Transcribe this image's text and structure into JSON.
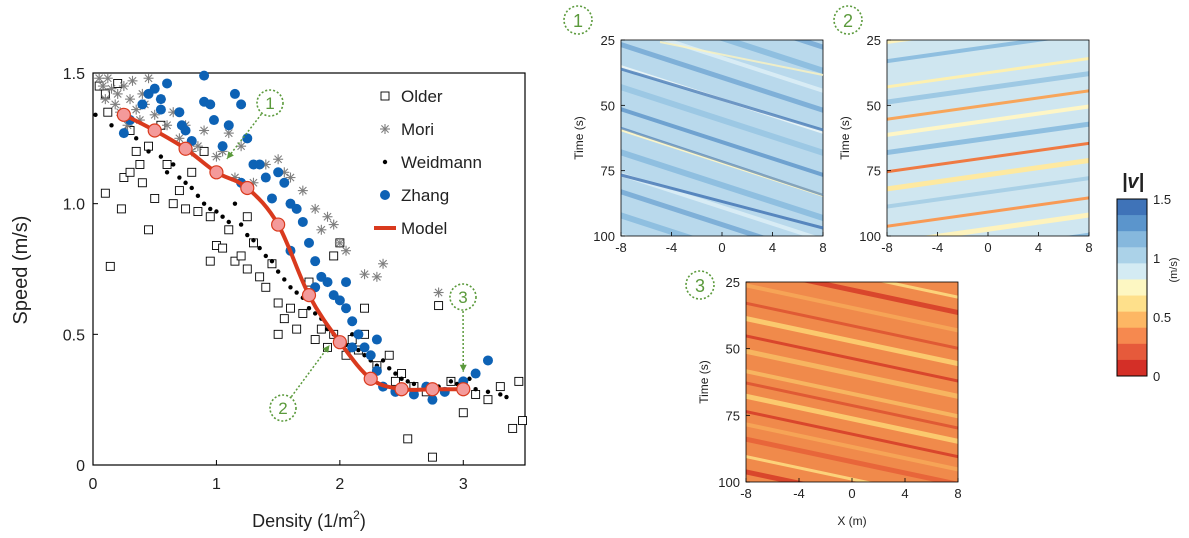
{
  "chart_data": [
    {
      "type": "scatter",
      "xlabel": "Density (1/m",
      "xlabel_sup": "2",
      "xlabel_end": ")",
      "ylabel": "Speed (m/s)",
      "xlim": [
        0,
        3.5
      ],
      "ylim": [
        0,
        1.5
      ],
      "xticks": [
        0,
        1,
        2,
        3
      ],
      "yticks": [
        0,
        0.5,
        1.0,
        1.5
      ],
      "ytick_labels": [
        "0",
        "0.5",
        "1.0",
        "1.5"
      ],
      "legend_position": "top-right",
      "series": [
        {
          "name": "Older",
          "marker": "square",
          "color": "#000000",
          "points": [
            [
              0.05,
              1.45
            ],
            [
              0.1,
              1.42
            ],
            [
              0.12,
              1.35
            ],
            [
              0.2,
              1.46
            ],
            [
              0.1,
              1.04
            ],
            [
              0.14,
              0.76
            ],
            [
              0.23,
              0.98
            ],
            [
              0.25,
              1.1
            ],
            [
              0.3,
              1.12
            ],
            [
              0.35,
              1.2
            ],
            [
              0.3,
              1.28
            ],
            [
              0.38,
              1.15
            ],
            [
              0.4,
              1.08
            ],
            [
              0.45,
              1.22
            ],
            [
              0.5,
              1.02
            ],
            [
              0.55,
              1.3
            ],
            [
              0.6,
              1.15
            ],
            [
              0.65,
              1.0
            ],
            [
              0.7,
              1.05
            ],
            [
              0.75,
              0.98
            ],
            [
              0.8,
              1.12
            ],
            [
              0.85,
              0.97
            ],
            [
              0.9,
              1.2
            ],
            [
              0.95,
              0.95
            ],
            [
              1.0,
              0.84
            ],
            [
              1.05,
              0.83
            ],
            [
              1.1,
              0.9
            ],
            [
              1.15,
              0.78
            ],
            [
              1.2,
              0.8
            ],
            [
              1.25,
              0.75
            ],
            [
              1.3,
              0.85
            ],
            [
              1.35,
              0.72
            ],
            [
              1.4,
              0.68
            ],
            [
              1.45,
              0.77
            ],
            [
              1.5,
              0.62
            ],
            [
              1.55,
              0.56
            ],
            [
              1.6,
              0.6
            ],
            [
              1.65,
              0.52
            ],
            [
              1.7,
              0.58
            ],
            [
              1.5,
              0.5
            ],
            [
              1.8,
              0.48
            ],
            [
              1.85,
              0.52
            ],
            [
              1.9,
              0.45
            ],
            [
              1.95,
              0.5
            ],
            [
              2.0,
              0.85
            ],
            [
              2.05,
              0.42
            ],
            [
              2.1,
              0.48
            ],
            [
              2.15,
              0.44
            ],
            [
              2.2,
              0.5
            ],
            [
              2.3,
              0.38
            ],
            [
              2.4,
              0.42
            ],
            [
              2.5,
              0.35
            ],
            [
              2.55,
              0.1
            ],
            [
              2.6,
              0.3
            ],
            [
              2.7,
              0.28
            ],
            [
              2.75,
              0.03
            ],
            [
              2.8,
              0.61
            ],
            [
              2.9,
              0.32
            ],
            [
              3.0,
              0.2
            ],
            [
              3.1,
              0.27
            ],
            [
              3.2,
              0.25
            ],
            [
              3.3,
              0.3
            ],
            [
              3.4,
              0.14
            ],
            [
              3.45,
              0.32
            ],
            [
              3.48,
              0.17
            ],
            [
              2.45,
              0.32
            ],
            [
              2.2,
              0.6
            ],
            [
              1.95,
              0.8
            ],
            [
              1.75,
              0.7
            ],
            [
              1.25,
              0.95
            ],
            [
              0.95,
              0.78
            ],
            [
              0.45,
              0.9
            ]
          ]
        },
        {
          "name": "Mori",
          "marker": "asterisk",
          "color": "#7f7f7f",
          "points": [
            [
              0.05,
              1.48
            ],
            [
              0.08,
              1.45
            ],
            [
              0.1,
              1.4
            ],
            [
              0.12,
              1.48
            ],
            [
              0.15,
              1.44
            ],
            [
              0.18,
              1.38
            ],
            [
              0.2,
              1.42
            ],
            [
              0.22,
              1.35
            ],
            [
              0.25,
              1.45
            ],
            [
              0.28,
              1.3
            ],
            [
              0.3,
              1.4
            ],
            [
              0.32,
              1.47
            ],
            [
              0.35,
              1.36
            ],
            [
              0.38,
              1.32
            ],
            [
              0.4,
              1.42
            ],
            [
              0.42,
              1.38
            ],
            [
              0.45,
              1.48
            ],
            [
              0.5,
              1.34
            ],
            [
              0.55,
              1.4
            ],
            [
              0.6,
              1.3
            ],
            [
              0.65,
              1.35
            ],
            [
              0.7,
              1.25
            ],
            [
              0.75,
              1.3
            ],
            [
              0.8,
              1.2
            ],
            [
              0.85,
              1.22
            ],
            [
              0.9,
              1.28
            ],
            [
              1.0,
              1.18
            ],
            [
              1.05,
              1.2
            ],
            [
              1.1,
              1.27
            ],
            [
              1.15,
              1.1
            ],
            [
              1.2,
              1.22
            ],
            [
              1.3,
              1.08
            ],
            [
              1.4,
              1.15
            ],
            [
              1.5,
              1.17
            ],
            [
              1.55,
              1.12
            ],
            [
              1.6,
              1.1
            ],
            [
              1.7,
              1.05
            ],
            [
              1.8,
              0.98
            ],
            [
              1.85,
              0.9
            ],
            [
              1.9,
              0.95
            ],
            [
              1.95,
              0.92
            ],
            [
              2.0,
              0.85
            ],
            [
              2.05,
              0.82
            ],
            [
              2.2,
              0.73
            ],
            [
              2.3,
              0.72
            ],
            [
              2.35,
              0.77
            ],
            [
              2.8,
              0.66
            ]
          ]
        },
        {
          "name": "Weidmann",
          "marker": "dot",
          "color": "#000000",
          "points": [
            [
              0.02,
              1.34
            ],
            [
              0.15,
              1.3
            ],
            [
              0.25,
              1.27
            ],
            [
              0.35,
              1.25
            ],
            [
              0.45,
              1.2
            ],
            [
              0.55,
              1.18
            ],
            [
              0.6,
              1.12
            ],
            [
              0.65,
              1.15
            ],
            [
              0.7,
              1.1
            ],
            [
              0.75,
              1.08
            ],
            [
              0.8,
              1.06
            ],
            [
              0.85,
              1.03
            ],
            [
              0.9,
              1.0
            ],
            [
              0.95,
              0.98
            ],
            [
              1.0,
              0.97
            ],
            [
              1.05,
              0.95
            ],
            [
              1.1,
              0.93
            ],
            [
              1.15,
              1.0
            ],
            [
              1.2,
              0.92
            ],
            [
              1.25,
              0.88
            ],
            [
              1.3,
              0.86
            ],
            [
              1.35,
              0.83
            ],
            [
              1.4,
              0.8
            ],
            [
              1.45,
              0.78
            ],
            [
              1.5,
              0.74
            ],
            [
              1.55,
              0.71
            ],
            [
              1.6,
              0.68
            ],
            [
              1.65,
              0.66
            ],
            [
              1.7,
              0.64
            ],
            [
              1.75,
              0.6
            ],
            [
              1.8,
              0.58
            ],
            [
              1.85,
              0.56
            ],
            [
              1.9,
              0.52
            ],
            [
              1.95,
              0.5
            ],
            [
              2.0,
              0.48
            ],
            [
              2.05,
              0.46
            ],
            [
              2.1,
              0.5
            ],
            [
              2.15,
              0.44
            ],
            [
              2.2,
              0.42
            ],
            [
              2.25,
              0.4
            ],
            [
              2.3,
              0.38
            ],
            [
              2.35,
              0.4
            ],
            [
              2.4,
              0.37
            ],
            [
              2.45,
              0.35
            ],
            [
              2.5,
              0.33
            ],
            [
              2.55,
              0.32
            ],
            [
              2.6,
              0.31
            ],
            [
              2.7,
              0.3
            ],
            [
              2.8,
              0.3
            ],
            [
              2.9,
              0.32
            ],
            [
              2.95,
              0.31
            ],
            [
              3.0,
              0.3
            ],
            [
              3.05,
              0.33
            ],
            [
              3.1,
              0.29
            ],
            [
              3.2,
              0.28
            ],
            [
              3.3,
              0.27
            ],
            [
              3.35,
              0.26
            ]
          ]
        },
        {
          "name": "Zhang",
          "marker": "circle",
          "color": "#0d62b5",
          "points": [
            [
              0.25,
              1.27
            ],
            [
              0.3,
              1.32
            ],
            [
              0.4,
              1.38
            ],
            [
              0.45,
              1.42
            ],
            [
              0.5,
              1.44
            ],
            [
              0.55,
              1.4
            ],
            [
              0.6,
              1.46
            ],
            [
              0.55,
              1.36
            ],
            [
              0.7,
              1.35
            ],
            [
              0.72,
              1.3
            ],
            [
              0.75,
              1.28
            ],
            [
              0.8,
              1.24
            ],
            [
              0.9,
              1.49
            ],
            [
              0.9,
              1.39
            ],
            [
              0.95,
              1.38
            ],
            [
              0.98,
              1.32
            ],
            [
              1.05,
              1.22
            ],
            [
              1.1,
              1.3
            ],
            [
              1.15,
              1.42
            ],
            [
              1.2,
              1.38
            ],
            [
              1.25,
              1.25
            ],
            [
              1.3,
              1.15
            ],
            [
              1.35,
              1.15
            ],
            [
              1.4,
              1.1
            ],
            [
              1.45,
              1.02
            ],
            [
              1.5,
              1.12
            ],
            [
              1.55,
              1.08
            ],
            [
              1.6,
              1.0
            ],
            [
              1.65,
              0.98
            ],
            [
              1.7,
              0.93
            ],
            [
              1.75,
              0.85
            ],
            [
              1.8,
              0.78
            ],
            [
              1.85,
              0.72
            ],
            [
              1.9,
              0.7
            ],
            [
              1.95,
              0.65
            ],
            [
              2.0,
              0.63
            ],
            [
              2.05,
              0.6
            ],
            [
              2.1,
              0.55
            ],
            [
              2.15,
              0.5
            ],
            [
              2.2,
              0.45
            ],
            [
              2.25,
              0.42
            ],
            [
              2.3,
              0.36
            ],
            [
              2.35,
              0.3
            ],
            [
              2.45,
              0.28
            ],
            [
              2.6,
              0.27
            ],
            [
              2.7,
              0.3
            ],
            [
              2.75,
              0.25
            ],
            [
              2.85,
              0.28
            ],
            [
              3.0,
              0.32
            ],
            [
              3.1,
              0.35
            ],
            [
              3.2,
              0.4
            ],
            [
              1.2,
              1.08
            ],
            [
              1.6,
              0.82
            ],
            [
              1.8,
              0.68
            ],
            [
              2.05,
              0.7
            ],
            [
              2.3,
              0.48
            ],
            [
              2.1,
              0.45
            ]
          ]
        },
        {
          "name": "Model",
          "marker": "line",
          "color": "#d93a1e",
          "points": [
            [
              0.25,
              1.34
            ],
            [
              0.5,
              1.28
            ],
            [
              0.75,
              1.21
            ],
            [
              1.0,
              1.12
            ],
            [
              1.25,
              1.06
            ],
            [
              1.5,
              0.92
            ],
            [
              1.75,
              0.65
            ],
            [
              2.0,
              0.47
            ],
            [
              2.25,
              0.33
            ],
            [
              2.5,
              0.29
            ],
            [
              2.75,
              0.29
            ],
            [
              3.0,
              0.29
            ]
          ]
        }
      ],
      "annotations": [
        {
          "label": "1",
          "x": 1.05,
          "y": 1.15
        },
        {
          "label": "2",
          "x": 1.95,
          "y": 0.48
        },
        {
          "label": "3",
          "x": 3.0,
          "y": 0.33
        }
      ]
    },
    {
      "type": "heatmap",
      "panel_label": "1",
      "ylabel": "Time (s)",
      "xticks": [
        "-8",
        "-4",
        "0",
        "4",
        "8"
      ],
      "yticks": [
        "25",
        "50",
        "75",
        "100"
      ]
    },
    {
      "type": "heatmap",
      "panel_label": "2",
      "ylabel": "Time (s)",
      "xticks": [
        "-8",
        "-4",
        "0",
        "4",
        "8"
      ],
      "yticks": [
        "25",
        "50",
        "75",
        "100"
      ]
    },
    {
      "type": "heatmap",
      "panel_label": "3",
      "ylabel": "Time (s)",
      "xlabel": "X (m)",
      "xticks": [
        "-8",
        "-4",
        "0",
        "4",
        "8"
      ],
      "yticks": [
        "25",
        "50",
        "75",
        "100"
      ]
    }
  ],
  "colorbar": {
    "title": "|v|",
    "unit": "(m/s)",
    "ticks": [
      "1.5",
      "1",
      "0.5",
      "0"
    ],
    "colors": [
      "#3f73b8",
      "#5b95cc",
      "#86b8dd",
      "#abd2e8",
      "#d4ebf3",
      "#fdf7c2",
      "#fee08b",
      "#fdb764",
      "#f6894f",
      "#e65a3b",
      "#d42f27"
    ]
  }
}
